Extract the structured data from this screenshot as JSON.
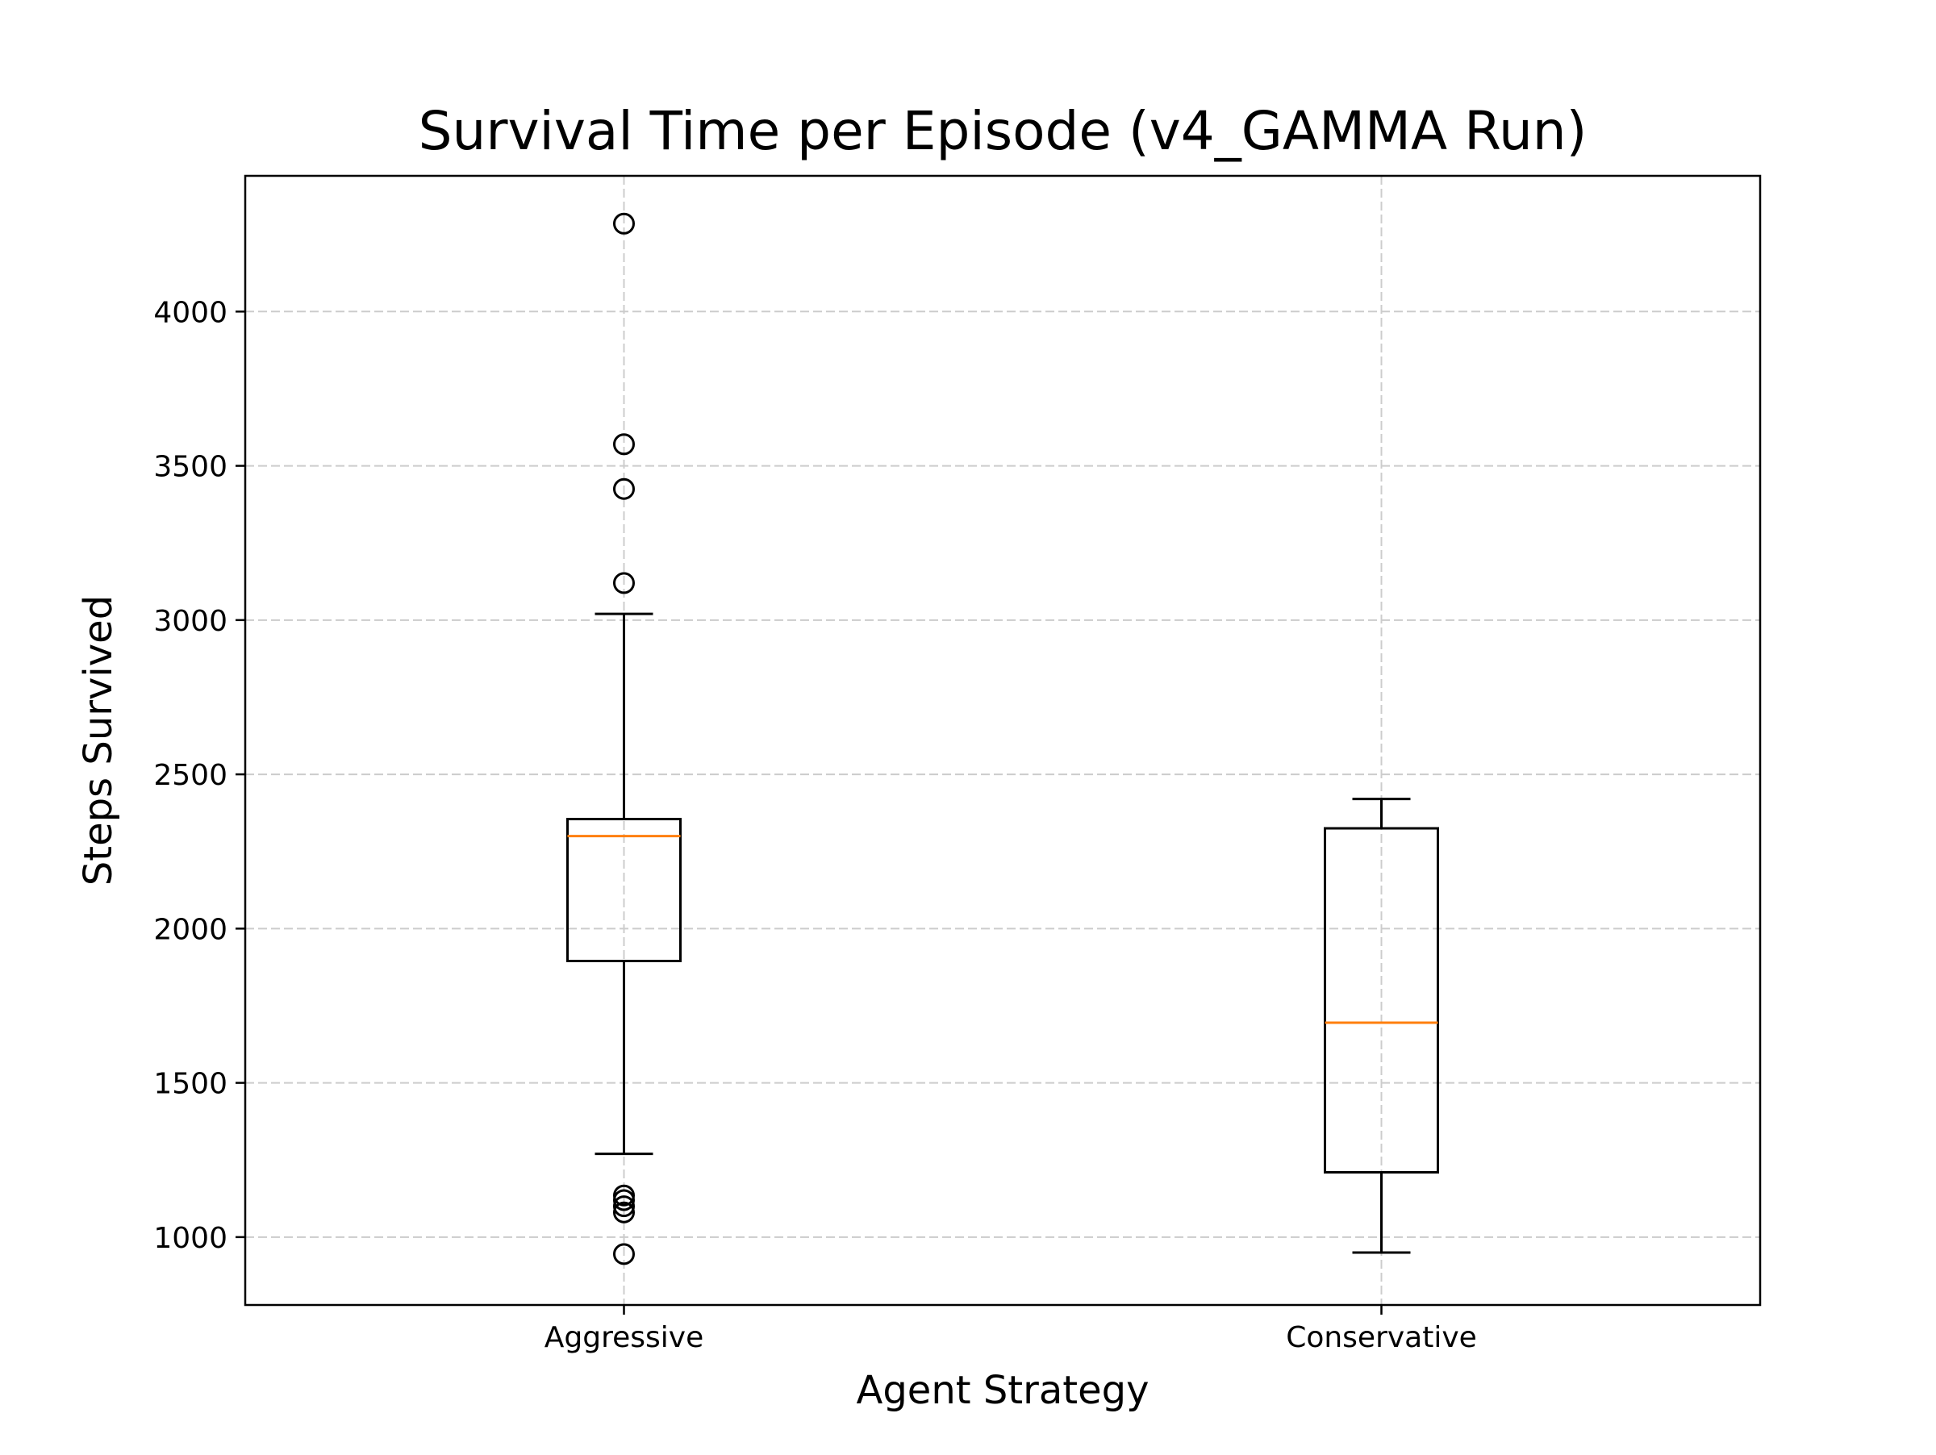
{
  "chart_data": {
    "type": "box",
    "title": "Survival Time per Episode (v4_GAMMA Run)",
    "xlabel": "Agent Strategy",
    "ylabel": "Steps Survived",
    "ylim": [
      780,
      4440
    ],
    "yticks": [
      1000,
      1500,
      2000,
      2500,
      3000,
      3500,
      4000
    ],
    "grid": true,
    "categories": [
      "Aggressive",
      "Conservative"
    ],
    "boxes": [
      {
        "category": "Aggressive",
        "whisker_low": 1270,
        "q1": 1895,
        "median": 2300,
        "q3": 2355,
        "whisker_high": 3020,
        "outliers": [
          4285,
          3570,
          3425,
          3120,
          1135,
          1120,
          1100,
          1080,
          945
        ]
      },
      {
        "category": "Conservative",
        "whisker_low": 950,
        "q1": 1210,
        "median": 1695,
        "q3": 2325,
        "whisker_high": 2420,
        "outliers": []
      }
    ],
    "colors": {
      "box": "#000000",
      "median": "#ff7f0e",
      "grid": "#cccccc"
    }
  }
}
